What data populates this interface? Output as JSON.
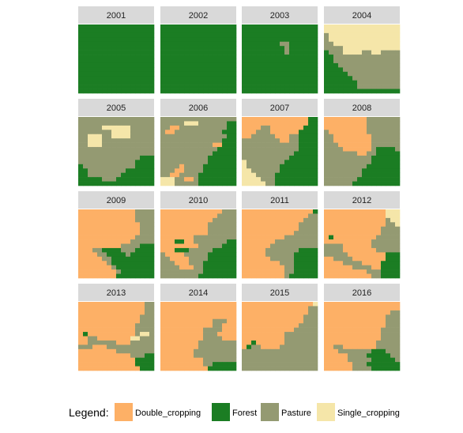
{
  "chart_data": {
    "type": "heatmap",
    "title": "",
    "grid_size": 16,
    "panels": [
      {
        "label": "2001",
        "rows": [
          "FFFFFFFFFFFFFFFF",
          "FFFFFFFFFFFFFFFF",
          "FFFFFFFFFFFFFFFF",
          "FFFFFFFFFFFFFFFF",
          "FFFFFFFFFFFFFFFF",
          "FFFFFFFFFFFFFFFF",
          "FFFFFFFFFFFFFFFF",
          "FFFFFFFFFFFFFFFF",
          "FFFFFFFFFFFFFFFF",
          "FFFFFFFFFFFFFFFF",
          "FFFFFFFFFFFFFFFF",
          "FFFFFFFFFFFFFFFF",
          "FFFFFFFFFFFFFFFF",
          "FFFFFFFFFFFFFFFF",
          "FFFFFFFFFFFFFFFF",
          "FFFFFFFFFFFFFFFF"
        ]
      },
      {
        "label": "2002",
        "rows": [
          "FFFFFFFFFFFFFFFF",
          "FFFFFFFFFFFFFFFF",
          "FFFFFFFFFFFFFFFF",
          "FFFFFFFFFFFFFFFF",
          "FFFFFFFFFFFFFFFF",
          "FFFFFFFFFFFFFFFF",
          "FFFFFFFFFFFFFFFF",
          "FFFFFFFFFFFFFFFF",
          "FFFFFFFFFFFFFFFF",
          "FFFFFFFFFFFFFFFF",
          "FFFFFFFFFFFFFFFF",
          "FFFFFFFFFFFFFFFF",
          "FFFFFFFFFFFFFFFF",
          "FFFFFFFFFFFFFFFF",
          "FFFFFFFFFFFFFFFF",
          "FFFFFFFFFFFFFFFF"
        ]
      },
      {
        "label": "2003",
        "rows": [
          "FFFFFFFFFFFFFFFF",
          "FFFFFFFFFFFFFFFF",
          "FFFFFFFFFFFFFFFF",
          "FFFFFFFFFFFFFFFF",
          "FFFFFFFFPPFFFFFF",
          "FFFFFFFFFPFFFFFF",
          "FFFFFFFFFPFFFFFF",
          "FFFFFFFFFFFFFFFF",
          "FFFFFFFFFFFFFFFF",
          "FFFFFFFFFFFFFFFF",
          "FFFFFFFFFFFFFFFF",
          "FFFFFFFFFFFFFFFF",
          "FFFFFFFFFFFFFFFF",
          "FFFFFFFFFFFFFFFF",
          "FFFFFFFFFFFFFFFF",
          "FFFFFFFFFFFFFFFF"
        ]
      },
      {
        "label": "2004",
        "rows": [
          "SSSSSSSSSSSSSSSS",
          "SSSSSSSSSSSSSSSS",
          "PSSSSSSSSSSSSSSS",
          "PSSSSSSSSSSSSSSS",
          "PPSSSSSSSSSSSSSS",
          "PPPPSSSSSSSSSSSS",
          "FPPPSSSSPPSSPPPP",
          "FFPPPPPPPPPPPPPP",
          "FFPPPPPPPPPPPPPP",
          "FFFPPPPPPPPPPPPP",
          "FFFFPPPPPPPPPPPP",
          "FFFFFPPPPPPPPPPP",
          "FFFFFFPPPPPPPPPP",
          "FFFFFFFPPPPPPPPP",
          "FFFFFFFPPPPPPPPP",
          "FFFFFFFFFFFFFFFF"
        ]
      },
      {
        "label": "2005",
        "rows": [
          "PPPPPPPPPPPPPPPP",
          "PPPPPPPPPPPPPPPP",
          "PPPPPSSSSSSPPPPP",
          "PPPPPPPSSSSPPPPP",
          "PPSSSPPSSSSPPPPP",
          "PPSSSPPPPPPPPPPP",
          "PPSSSPPPPPPPPPPP",
          "PPPPPPPPPPPPPPPP",
          "PPPPPPPPPPPPPPPP",
          "PPPPPPPPPPPPPFFF",
          "PPPPPPPPPPPPFFFF",
          "FPPPPPPPPPPPFFFF",
          "FFPPPPPPPPFFFFFF",
          "FFPPPPPPPFFFFFFF",
          "FFFFFPPPFFFFFFFF",
          "FFFFFFFFFFFFFFFF"
        ]
      },
      {
        "label": "2006",
        "rows": [
          "PPPPPPPPPPPPPPPP",
          "PPPPPSSSPPPPPPFF",
          "PPDDPPPPPPPPPPFF",
          "PDDPPPPPPPPPPFFF",
          "PPPPPPPPPPPPPPFF",
          "PPPPPPPPPPPPPFFF",
          "PPPPPPPPPPPDDFFF",
          "PPPPPPPPPPPPFFFF",
          "PPPPPPPPPPPFFFFF",
          "PPPPPPPPPPFFFFFF",
          "PPPPPPPPPPFFFFFF",
          "PPPPDPPPPFFFFFFF",
          "PPPDDPPPPFFFFFFF",
          "PPDDPPPPFFFFFFFF",
          "SSSPPDDPFFFFFFFF",
          "SSSPPPPPFFFFFFFF"
        ]
      },
      {
        "label": "2007",
        "rows": [
          "DDDDDDDDDDDDDDFF",
          "DDDDDDDDDDDDDDFF",
          "DDDDPPDDDDDDDFFF",
          "DDDPPPDDDDDDFFFF",
          "DDPPPPPDDDPPFFFF",
          "PPPPPPPPDDPPFFFF",
          "PPPPPPPPPPPPFFFF",
          "PPPPPPPPPPPPFFFF",
          "PPPPPPPPPPPFFFFF",
          "PPPPPPPPPPFFFFFF",
          "SPPPPPPPPFFFFFFF",
          "SPPPPPPPFFFFFFFF",
          "SSPPPPPPFFFFFFFF",
          "SSSPPPPFFFFFFFFF",
          "SSSSPPPFFFFFFFFF",
          "SSSSSPPFFFFFFFFF"
        ]
      },
      {
        "label": "2008",
        "rows": [
          "DDDDDDDDDPPPPPPP",
          "DDDDDDDDDPPPPPPP",
          "DDDDDDDDDPPPPPPP",
          "PDDDDDDDDPPPPPPP",
          "PPDDDDDDDDPPPPPP",
          "PPDDDDDDDDPPPPPP",
          "PPPDDDDDDDPPPPPP",
          "PPPPDDDDDDPFFFFP",
          "PPPPPPPDDPPFFFFF",
          "PPPPPPPPPPFFFFFF",
          "PPPPPPPPPPFFFFFF",
          "PPPPPPPPPFFFFFFF",
          "PPPPPPPPFFFFFFFF",
          "PPPPPPPPFFFFFFFF",
          "PPPPPPPFFFFFFFFF",
          "PPPPPPFFFFFFFFFF"
        ]
      },
      {
        "label": "2009",
        "rows": [
          "DDDDDDDDDDDDPPPP",
          "DDDDDDDDDDDDPPPP",
          "DDDDDDDDDDDDPPPP",
          "DDDDDDDDDDDDDPPP",
          "DDDDDDDDDDDDDPPP",
          "DDDDDDDDDDDDDPPP",
          "DDDDDDDDDDDDPPPP",
          "DDDDDDDDDDDPPPPP",
          "DDDDDDDDDPPPPFFF",
          "DDDPPFFFFPPPFFFF",
          "DDDDPPFFFFPFFFFF",
          "DDDDDPPFFFFFFFFF",
          "DDDDDDPFFFFFFFFF",
          "DDDDDDDPFFFFFFFF",
          "DDDDDDDDPFFFFFFF",
          "DDDDDDDDFFFFFFFF"
        ]
      },
      {
        "label": "2010",
        "rows": [
          "DDDDDDDDDDDDDPPP",
          "DDDDDDDDDDDDPPPP",
          "DDDDDDDDDDDPPPPP",
          "DDDDDDDDDDPPPPPP",
          "DDDDDDDDDDPPPPPP",
          "DDDDDDDDDDPPPPPP",
          "DDDDDDDPPPPPPPPP",
          "DDDFFDDPPPPPPPFF",
          "DDDDDDDDPPPPPFFF",
          "DDDFFFPPPPPFFFFF",
          "PDDDDPPPPPFFFFFF",
          "PPDDDDPPPPFFFFFF",
          "PPPDDDPPPFFFFFFF",
          "PPPPDDDPPFFFFFFF",
          "PPPPPPPPPFFFFFFF",
          "PPPPPPPPFFFFFFFF"
        ]
      },
      {
        "label": "2011",
        "rows": [
          "DDDDDDDDDDDDDDDF",
          "DDDDDDDDDDDDDDPP",
          "DDDDDDDDDDDDDPPP",
          "DDDDDDDDDDDDPPPP",
          "DDDDDDDDDDDDPPPP",
          "DDDDDDDDDDDPPPPP",
          "DDDDDDDDDPPPPPPP",
          "DDDDDDDPPPPPPPPP",
          "DDDDDDPPPPPPPPPP",
          "DDDDDPPPPPPPFFFF",
          "DDDDDPPPPPPFFFFF",
          "DDDDDDPPPPPFFFFF",
          "DDDDDDDDPPPFFFFF",
          "DDDDDDDDDPPFFFFF",
          "DDDDDDDDDPPFFFFF",
          "DDDDDDDDDPFFFFFF"
        ]
      },
      {
        "label": "2012",
        "rows": [
          "DDDDDDDDDDDDDSSS",
          "DDDDDDDDDDDDDSSS",
          "DDDDDDDDDDDDDPSS",
          "DDDDDDDDDDDDDPPS",
          "DDDDDDDDDDDDPPPP",
          "DDDDDDDDDDDDPPPP",
          "DFDDDDDDDDDPPPPP",
          "DDDDDDDDDDPPPPPP",
          "PPPPDDDDDDPPPPPP",
          "PPPPDDDDDDDPPPPP",
          "PPPPPDDDDDDDDFFF",
          "DDPPPPDDDDDDDFFF",
          "DDDDPPPPDDDDFFFF",
          "DDDDDDPPPPDDFFFF",
          "DDDDDDDDDPPPFFFF",
          "DDDDDDDDDDPPFFFF"
        ]
      },
      {
        "label": "2013",
        "rows": [
          "DDDDDDDDDDDDDDPP",
          "DDDDDDDDDDDDDDPP",
          "DDDDDDDDDDDDDDPP",
          "DDDDDDDDDDDDDPPP",
          "DDDDDDDDDDDDDPPP",
          "DDDDDDDDDDDDPPPP",
          "DDDDDDDDDDDDPPPP",
          "DFDDDDDDDDDDPSSP",
          "DDPPDDDDDDDSSPPP",
          "DDPPPPPPDDDPPPPP",
          "PPPDDDPPPPPPPPPP",
          "DDDDDDDDPPPPPPPP",
          "DDDDDDDDDDDPPPFF",
          "DDDDDDDDDDDDFFFF",
          "DDDDDDDDDDDDFFFF",
          "DDDDDDDDDDDDDFFF"
        ]
      },
      {
        "label": "2014",
        "rows": [
          "DDDDDDDDDDDDDDDD",
          "DDDDDDDDDDDDDDDD",
          "DDDDDDDDDDDDDDDD",
          "DDDDDDDDDDDDDDDD",
          "DDDDDDDDDDDPPPDD",
          "DDDDDDDDDDDPPDDD",
          "DDDDDDDDDPPPPDDD",
          "DDDDDDDDDPPPDDDD",
          "DDDDDDDDDPPPPDDD",
          "DDDDDDDDPPPPPPPP",
          "DDDDDDDDPPPPPPPP",
          "DDDDDDDPPPPPPPPP",
          "DDDDDDDPPPPPPPPP",
          "DDDDDDDDDPPPPPPP",
          "DDDDDDDDDPPFFFFF",
          "DDDDDDDDDDFFFFFF"
        ]
      },
      {
        "label": "2015",
        "rows": [
          "DDDDDDDDDDDDDDDS",
          "DDDDDDDDDDDDDDPP",
          "DDDDDDDDDDDDDDPP",
          "DDDDDDDDDDDDDPPP",
          "DDDDDDDDDDDDDPPP",
          "DDDDDDDDDDDDPPPP",
          "DDDDDDDDDDDPPPPP",
          "DDDDDDDDDPPPPPPP",
          "DDDDDDDDDPPPPPPP",
          "DDFDDDDDDPPPPPPP",
          "DFPPDDDDPPPPPPPP",
          "PPPPPPPPPPPPPPPP",
          "PPPPPPPPPPPPPPPP",
          "PPPPPPPPPPPPPPPP",
          "PPPPPPPPPPPPPPPP",
          "PPPPPPPPPPPPPPPP"
        ]
      },
      {
        "label": "2016",
        "rows": [
          "DDDDDDDDDDDDDDDD",
          "DDDDDDDDDDDDDDDD",
          "DDDDDDDDDDDDDDPP",
          "DDDDDDDDDDDDDPPP",
          "DDDDDDDDDDDDDPPP",
          "DDDDDDDDDDDDDPPP",
          "DDDDDDDDDDDDPPPP",
          "DDDDDDDDDDDDPPPP",
          "DDDDDDDDDDDDPPPP",
          "DDDDDDDDDDDPPPPP",
          "DDPPDDDDDDDPPPPP",
          "DDDPPPPPPPFFFPPP",
          "DDDDDPPPPFFFFFPP",
          "DDDDDPPPPPFFFFFP",
          "DDDDDDPPPFFFFFFF",
          "DDDDDDPPPPFFFFFF"
        ]
      }
    ],
    "categories": [
      {
        "code": "D",
        "label": "Double_cropping",
        "color": "#FDB066"
      },
      {
        "code": "F",
        "label": "Forest",
        "color": "#1B7D23"
      },
      {
        "code": "P",
        "label": "Pasture",
        "color": "#949A72"
      },
      {
        "code": "S",
        "label": "Single_cropping",
        "color": "#F5E6A9"
      }
    ],
    "legend": {
      "title": "Legend:",
      "placement": "bottom"
    },
    "strip_color": "#D9D9D9"
  }
}
